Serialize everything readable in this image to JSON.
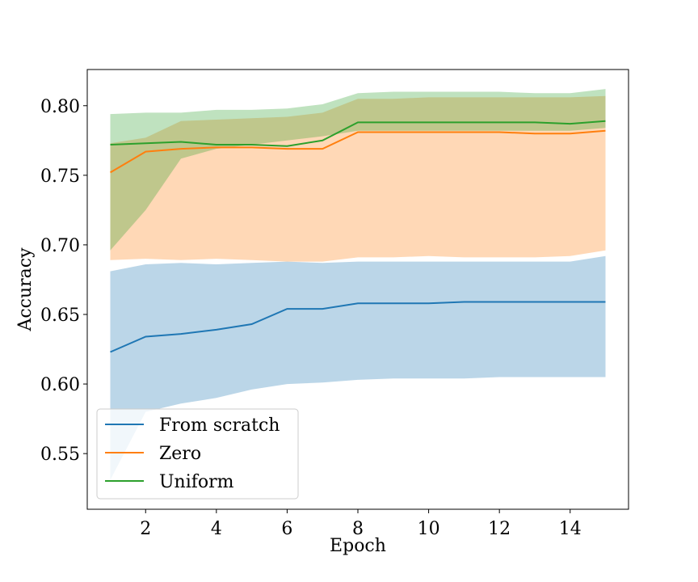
{
  "chart_data": {
    "type": "line",
    "title": "",
    "xlabel": "Epoch",
    "ylabel": "Accuracy",
    "xlim": [
      0.35,
      15.65
    ],
    "ylim": [
      0.51,
      0.826
    ],
    "x_ticks": [
      2,
      4,
      6,
      8,
      10,
      12,
      14
    ],
    "y_ticks": [
      0.55,
      0.6,
      0.65,
      0.7,
      0.75,
      0.8
    ],
    "x_tick_labels": [
      "2",
      "4",
      "6",
      "8",
      "10",
      "12",
      "14"
    ],
    "y_tick_labels": [
      "0.55",
      "0.60",
      "0.65",
      "0.70",
      "0.75",
      "0.80"
    ],
    "grid": false,
    "legend_position": "lower-left",
    "x": [
      1,
      2,
      3,
      4,
      5,
      6,
      7,
      8,
      9,
      10,
      11,
      12,
      13,
      14,
      15
    ],
    "series": [
      {
        "name": "From scratch",
        "color": "#1f77b4",
        "values": [
          0.623,
          0.634,
          0.636,
          0.639,
          0.643,
          0.654,
          0.654,
          0.658,
          0.658,
          0.658,
          0.659,
          0.659,
          0.659,
          0.659,
          0.659
        ],
        "band_lower": [
          0.531,
          0.58,
          0.586,
          0.59,
          0.596,
          0.6,
          0.601,
          0.603,
          0.604,
          0.604,
          0.604,
          0.605,
          0.605,
          0.605,
          0.605
        ],
        "band_upper": [
          0.681,
          0.686,
          0.687,
          0.686,
          0.687,
          0.688,
          0.687,
          0.688,
          0.688,
          0.688,
          0.688,
          0.688,
          0.688,
          0.688,
          0.692
        ]
      },
      {
        "name": "Zero",
        "color": "#ff7f0e",
        "values": [
          0.752,
          0.767,
          0.769,
          0.77,
          0.77,
          0.769,
          0.769,
          0.781,
          0.781,
          0.781,
          0.781,
          0.781,
          0.78,
          0.78,
          0.782
        ],
        "band_lower": [
          0.689,
          0.69,
          0.689,
          0.69,
          0.689,
          0.688,
          0.688,
          0.691,
          0.691,
          0.692,
          0.691,
          0.691,
          0.691,
          0.692,
          0.696
        ],
        "band_upper": [
          0.773,
          0.777,
          0.789,
          0.79,
          0.791,
          0.792,
          0.795,
          0.805,
          0.805,
          0.806,
          0.806,
          0.806,
          0.806,
          0.806,
          0.807
        ]
      },
      {
        "name": "Uniform",
        "color": "#2ca02c",
        "values": [
          0.772,
          0.773,
          0.774,
          0.772,
          0.772,
          0.771,
          0.775,
          0.788,
          0.788,
          0.788,
          0.788,
          0.788,
          0.788,
          0.787,
          0.789
        ],
        "band_lower": [
          0.696,
          0.725,
          0.762,
          0.769,
          0.772,
          0.775,
          0.778,
          0.782,
          0.782,
          0.782,
          0.782,
          0.782,
          0.782,
          0.782,
          0.784
        ],
        "band_upper": [
          0.794,
          0.795,
          0.795,
          0.797,
          0.797,
          0.798,
          0.801,
          0.809,
          0.81,
          0.81,
          0.81,
          0.81,
          0.809,
          0.809,
          0.812
        ]
      }
    ]
  }
}
